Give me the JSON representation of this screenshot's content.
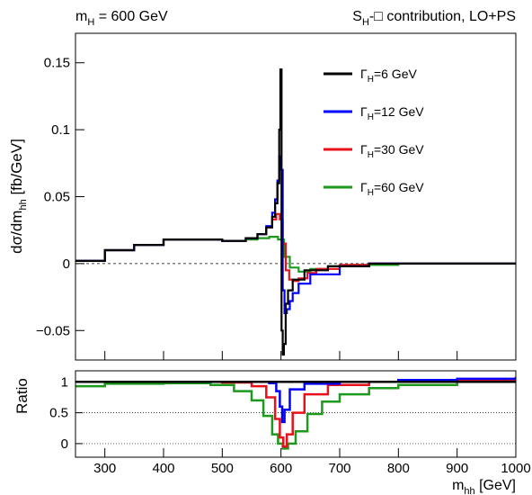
{
  "header": {
    "left_text": {
      "main": "m",
      "sub": "H",
      "rest": " = 600 GeV"
    },
    "right_text": {
      "main": "S",
      "sub": "H",
      "rest": "-□ contribution, LO+PS"
    }
  },
  "chart_data": [
    {
      "type": "line",
      "panel": "main",
      "ylabel": {
        "main": "dσ/dm",
        "sub": "hh",
        "rest": " [fb/GeV]"
      },
      "xlim": [
        250,
        1000
      ],
      "ylim": [
        -0.072,
        0.172
      ],
      "yticks": [
        -0.05,
        0,
        0.05,
        0.1,
        0.15
      ],
      "ytick_labels": [
        "−0.05",
        "0",
        "0.05",
        "0.1",
        "0.15"
      ],
      "reference_line": {
        "y": 0,
        "style": "dashed"
      },
      "legend_position": "top-right",
      "series": [
        {
          "name": {
            "main": "Γ",
            "sub": "H",
            "rest": "=6 GeV"
          },
          "color": "#000000",
          "x": [
            250,
            300,
            350,
            400,
            450,
            500,
            540,
            560,
            575,
            585,
            590,
            594,
            597,
            599,
            601,
            603,
            605,
            608,
            612,
            620,
            640,
            680,
            750,
            850,
            1000
          ],
          "y": [
            0.002,
            0.01,
            0.014,
            0.018,
            0.018,
            0.017,
            0.019,
            0.022,
            0.027,
            0.035,
            0.045,
            0.06,
            0.1,
            0.145,
            -0.05,
            -0.068,
            -0.06,
            -0.03,
            -0.02,
            -0.012,
            -0.005,
            -0.002,
            0.0,
            0.0,
            0.0
          ]
        },
        {
          "name": {
            "main": "Γ",
            "sub": "H",
            "rest": "=12 GeV"
          },
          "color": "#0000ff",
          "x": [
            250,
            300,
            350,
            400,
            450,
            500,
            540,
            560,
            575,
            585,
            590,
            594,
            597,
            600,
            603,
            606,
            610,
            615,
            620,
            630,
            650,
            700,
            750,
            850,
            1000
          ],
          "y": [
            0.002,
            0.01,
            0.014,
            0.018,
            0.018,
            0.017,
            0.019,
            0.022,
            0.028,
            0.038,
            0.048,
            0.062,
            0.08,
            0.07,
            -0.02,
            -0.037,
            -0.034,
            -0.028,
            -0.022,
            -0.015,
            -0.008,
            -0.002,
            0.0,
            0.0,
            0.0
          ]
        },
        {
          "name": {
            "main": "Γ",
            "sub": "H",
            "rest": "=30 GeV"
          },
          "color": "#e8101a",
          "x": [
            250,
            300,
            350,
            400,
            450,
            500,
            540,
            560,
            575,
            585,
            592,
            598,
            603,
            608,
            614,
            620,
            630,
            645,
            660,
            700,
            750,
            850,
            1000
          ],
          "y": [
            0.002,
            0.01,
            0.014,
            0.018,
            0.018,
            0.017,
            0.019,
            0.022,
            0.027,
            0.033,
            0.037,
            0.033,
            0.015,
            -0.005,
            -0.012,
            -0.013,
            -0.011,
            -0.007,
            -0.004,
            -0.001,
            0.0,
            0.0,
            0.0
          ]
        },
        {
          "name": {
            "main": "Γ",
            "sub": "H",
            "rest": "=60 GeV"
          },
          "color": "#1d9a1d",
          "x": [
            250,
            300,
            350,
            400,
            450,
            500,
            540,
            560,
            580,
            595,
            605,
            615,
            630,
            650,
            680,
            720,
            800,
            1000
          ],
          "y": [
            0.002,
            0.01,
            0.014,
            0.018,
            0.018,
            0.017,
            0.018,
            0.019,
            0.02,
            0.018,
            0.005,
            -0.003,
            -0.006,
            -0.004,
            -0.002,
            -0.001,
            0.0,
            0.0
          ]
        }
      ]
    },
    {
      "type": "line",
      "panel": "ratio",
      "ylabel": "Ratio",
      "xlabel": {
        "main": "m",
        "sub": "hh",
        "rest": " [GeV]"
      },
      "xlim": [
        250,
        1000
      ],
      "ylim": [
        -0.22,
        1.18
      ],
      "xticks": [
        300,
        400,
        500,
        600,
        700,
        800,
        900,
        1000
      ],
      "yticks": [
        0,
        0.5,
        1
      ],
      "ytick_labels": [
        "0",
        "0.5",
        "1"
      ],
      "reference_lines": [
        {
          "y": 0,
          "style": "dotted"
        },
        {
          "y": 0.5,
          "style": "dotted"
        },
        {
          "y": 1,
          "style": "dotted"
        }
      ],
      "series": [
        {
          "color": "#000000",
          "x": [
            250,
            400,
            550,
            590,
            597,
            600,
            603,
            610,
            700,
            1000
          ],
          "y": [
            1.0,
            1.0,
            1.0,
            1.0,
            1.0,
            1.0,
            1.0,
            1.0,
            1.0,
            1.0
          ]
        },
        {
          "color": "#0000ff",
          "x": [
            250,
            400,
            550,
            580,
            592,
            598,
            602,
            606,
            615,
            640,
            700,
            800,
            900,
            1000
          ],
          "y": [
            1.0,
            1.0,
            1.0,
            0.98,
            0.85,
            0.6,
            0.35,
            0.55,
            0.88,
            0.97,
            1.0,
            1.03,
            1.05,
            1.08
          ]
        },
        {
          "color": "#e8101a",
          "x": [
            250,
            400,
            500,
            550,
            575,
            590,
            598,
            604,
            610,
            620,
            640,
            680,
            750,
            850,
            1000
          ],
          "y": [
            1.0,
            1.0,
            0.99,
            0.93,
            0.75,
            0.4,
            0.1,
            -0.05,
            0.15,
            0.5,
            0.8,
            0.95,
            1.0,
            1.03,
            1.08
          ]
        },
        {
          "color": "#1d9a1d",
          "x": [
            250,
            300,
            400,
            480,
            520,
            550,
            570,
            585,
            595,
            603,
            612,
            625,
            645,
            670,
            700,
            750,
            800,
            900,
            1000
          ],
          "y": [
            0.93,
            0.97,
            0.98,
            0.95,
            0.85,
            0.7,
            0.45,
            0.15,
            0.0,
            -0.08,
            0.0,
            0.2,
            0.48,
            0.68,
            0.8,
            0.9,
            0.95,
            1.0,
            1.03
          ]
        }
      ]
    }
  ]
}
